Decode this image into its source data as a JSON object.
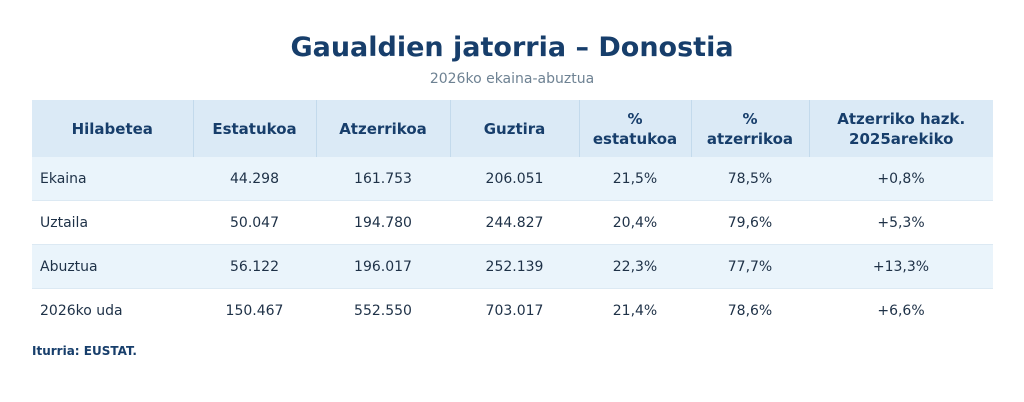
{
  "title": "Gaualdien jatorria – Donostia",
  "subtitle": "2026ko ekaina-abuztua",
  "table": {
    "headers": [
      "Hilabetea",
      "Estatukoa",
      "Atzerrikoa",
      "Guztira",
      "% estatukoa",
      "% atzerrikoa",
      "Atzerriko hazk. 2025arekiko"
    ],
    "rows": [
      [
        "Ekaina",
        "44.298",
        "161.753",
        "206.051",
        "21,5%",
        "78,5%",
        "+0,8%"
      ],
      [
        "Uztaila",
        "50.047",
        "194.780",
        "244.827",
        "20,4%",
        "79,6%",
        "+5,3%"
      ],
      [
        "Abuztua",
        "56.122",
        "196.017",
        "252.139",
        "22,3%",
        "77,7%",
        "+13,3%"
      ],
      [
        "2026ko uda",
        "150.467",
        "552.550",
        "703.017",
        "21,4%",
        "78,6%",
        "+6,6%"
      ]
    ]
  },
  "source": "Iturria: EUSTAT."
}
